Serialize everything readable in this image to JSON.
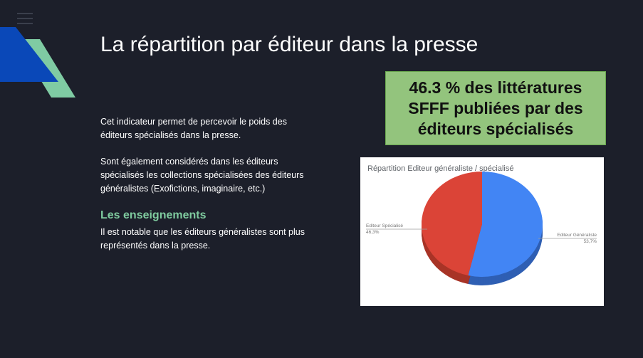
{
  "slide": {
    "title": "La répartition par éditeur dans la presse",
    "paragraph1": "Cet indicateur permet de percevoir le poids des éditeurs spécialisés dans la presse.",
    "paragraph2": "Sont également considérés dans les éditeurs spécialisés les collections spécialisées des éditeurs généralistes (Exofictions, imaginaire, etc.)",
    "findings_heading": "Les enseignements",
    "findings_text": "Il est notable que les éditeurs généralistes sont plus représentés dans la presse.",
    "callout": "46.3 % des littératures SFFF publiées par des éditeurs spécialisés"
  },
  "colors": {
    "background": "#1c1f2a",
    "heading_green": "#7fcb9f",
    "callout_green": "#93c47d",
    "deco_blue": "#0a48b8",
    "deco_green": "#7fcba3"
  },
  "icons": {
    "menu": "hamburger-menu-icon"
  },
  "chart_data": {
    "type": "pie",
    "title": "Répartition Editeur généraliste / spécialisé",
    "slices": [
      {
        "label": "Editeur Spécialisé",
        "value": 46.3,
        "display": "46,3%",
        "color": "#db4437",
        "shadow": "#a83427"
      },
      {
        "label": "Editeur Généraliste",
        "value": 53.7,
        "display": "53,7%",
        "color": "#4285f4",
        "shadow": "#2f5fb3"
      }
    ],
    "style": "3d",
    "legend": "labels-with-leader-lines"
  }
}
